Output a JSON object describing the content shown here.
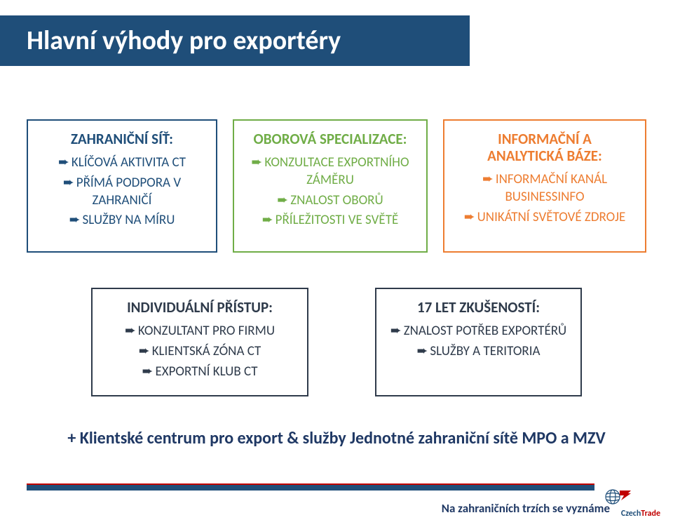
{
  "title": "Hlavní výhody pro exportéry",
  "colors": {
    "title_bar_bg": "#1f4e79",
    "title_text": "#ffffff",
    "footer_text": "#1f3864",
    "box_blue": "#1f4e79",
    "box_green": "#70ad47",
    "box_orange": "#ed7d31",
    "box_dark": "#2f3b4b",
    "logo_red": "#c00000"
  },
  "row1": [
    {
      "color": "#1f4e79",
      "title_lines": [
        "ZAHRANIČNÍ SÍŤ:"
      ],
      "items": [
        "KLÍČOVÁ AKTIVITA CT",
        "PŘÍMÁ PODPORA V ZAHRANIČÍ",
        "SLUŽBY NA MÍRU"
      ]
    },
    {
      "color": "#70ad47",
      "title_lines": [
        "OBOROVÁ SPECIALIZACE:"
      ],
      "items": [
        "KONZULTACE EXPORTNÍHO ZÁMĚRU",
        "ZNALOST OBORŮ",
        "PŘÍLEŽITOSTI VE SVĚTĚ"
      ]
    },
    {
      "color": "#ed7d31",
      "title_lines": [
        "INFORMAČNÍ A",
        "ANALYTICKÁ BÁZE:"
      ],
      "items": [
        "INFORMAČNÍ KANÁL BUSINESSINFO",
        "UNIKÁTNÍ SVĚTOVÉ ZDROJE"
      ]
    }
  ],
  "row2": [
    {
      "color": "#2f3b4b",
      "title_lines": [
        "INDIVIDUÁLNÍ PŘÍSTUP:"
      ],
      "items": [
        "KONZULTANT  PRO FIRMU",
        "KLIENTSKÁ ZÓNA CT",
        "EXPORTNÍ KLUB CT"
      ]
    },
    {
      "color": "#2f3b4b",
      "title_lines": [
        "17 LET ZKUŠENOSTÍ:"
      ],
      "items": [
        "ZNALOST POTŘEB EXPORTÉRŮ",
        "SLUŽBY A TERITORIA"
      ]
    }
  ],
  "footer_note": "+ Klientské centrum pro export & služby Jednotné zahraniční sítě MPO a MZV",
  "tagline": "Na zahraničních trzích se vyznáme",
  "logo": {
    "part1": "Czech",
    "part2": "Trade"
  }
}
